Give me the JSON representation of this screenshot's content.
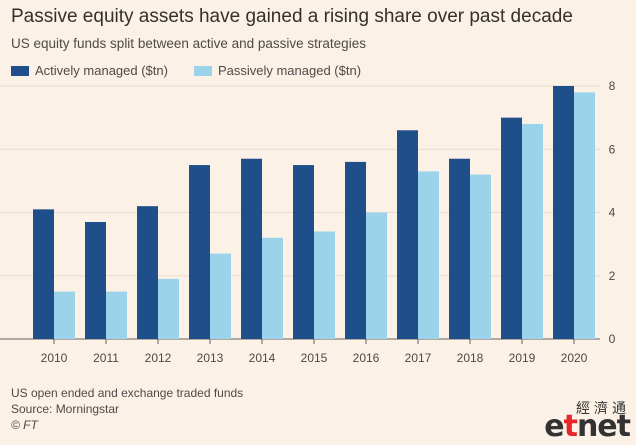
{
  "colors": {
    "background": "#fbf1e6",
    "active": "#1f4f8a",
    "passive": "#9bd4ea",
    "grid": "#e6dbcf",
    "axis_text": "#4d4a47"
  },
  "footer": {
    "note": "US open ended and exchange traded funds",
    "source": "Source: Morningstar",
    "credit": "© FT"
  },
  "watermark": {
    "chinese": "經濟通",
    "logo_prefix": "e",
    "logo_accent": "t",
    "logo_suffix": "net"
  },
  "chart_data": {
    "type": "bar",
    "title": "Passive equity assets have gained a rising share over past decade",
    "subtitle": "US equity funds split between active and passive strategies",
    "xlabel": "",
    "ylabel": "",
    "categories": [
      "2010",
      "2011",
      "2012",
      "2013",
      "2014",
      "2015",
      "2016",
      "2017",
      "2018",
      "2019",
      "2020"
    ],
    "series": [
      {
        "name": "Actively managed ($tn)",
        "color": "#1f4f8a",
        "values": [
          4.1,
          3.7,
          4.2,
          5.5,
          5.7,
          5.5,
          5.6,
          6.6,
          5.7,
          7.0,
          8.0
        ]
      },
      {
        "name": "Passively managed ($tn)",
        "color": "#9bd4ea",
        "values": [
          1.5,
          1.5,
          1.9,
          2.7,
          3.2,
          3.4,
          4.0,
          5.3,
          5.2,
          6.8,
          7.8
        ]
      }
    ],
    "ylim": [
      0,
      8
    ],
    "yticks": [
      0,
      2,
      4,
      6,
      8
    ],
    "y_axis_side": "right",
    "grid": true,
    "legend_position": "top-left"
  }
}
